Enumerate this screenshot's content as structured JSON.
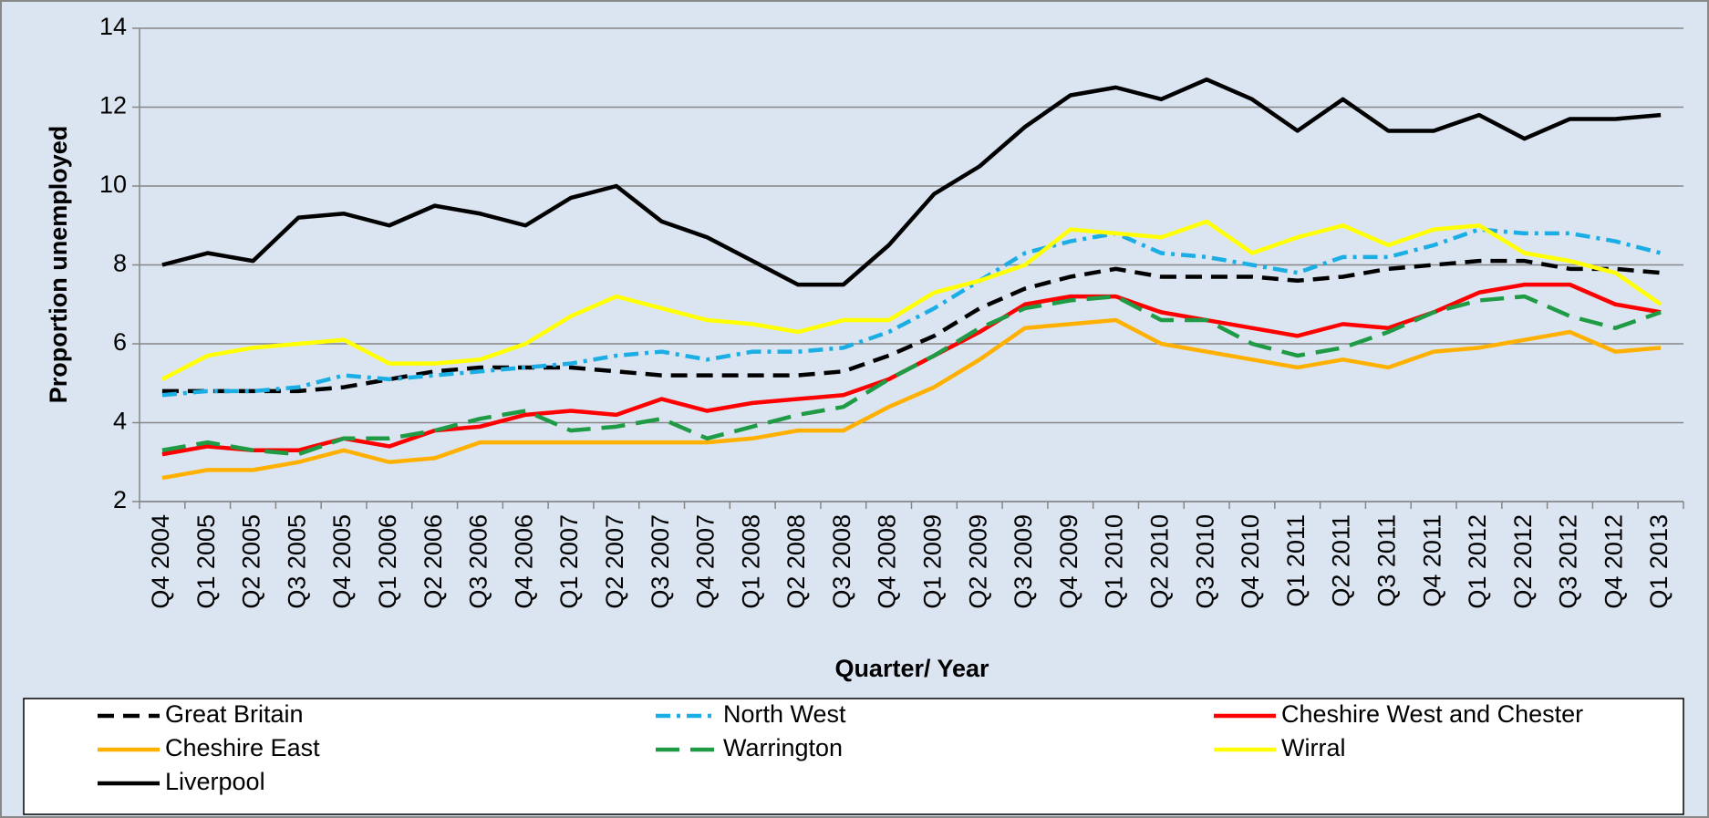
{
  "chart_data": {
    "type": "line",
    "x_label": "Quarter/ Year",
    "y_label": "Proportion unemployed",
    "categories": [
      "Q4 2004",
      "Q1 2005",
      "Q2 2005",
      "Q3 2005",
      "Q4 2005",
      "Q1 2006",
      "Q2 2006",
      "Q3 2006",
      "Q4 2006",
      "Q1 2007",
      "Q2 2007",
      "Q3 2007",
      "Q4 2007",
      "Q1 2008",
      "Q2 2008",
      "Q3 2008",
      "Q4 2008",
      "Q1 2009",
      "Q2 2009",
      "Q3 2009",
      "Q4 2009",
      "Q1 2010",
      "Q2 2010",
      "Q3 2010",
      "Q4 2010",
      "Q1 2011",
      "Q2 2011",
      "Q3 2011",
      "Q4 2011",
      "Q1 2012",
      "Q2 2012",
      "Q3 2012",
      "Q4 2012",
      "Q1 2013"
    ],
    "ylim": [
      2,
      14
    ],
    "yticks": [
      2,
      4,
      6,
      8,
      10,
      12,
      14
    ],
    "grid": true,
    "legend": "bottom",
    "series": [
      {
        "name": "Great Britain",
        "color": "#000000",
        "dash": "dashed",
        "values": [
          4.8,
          4.8,
          4.8,
          4.8,
          4.9,
          5.1,
          5.3,
          5.4,
          5.4,
          5.4,
          5.3,
          5.2,
          5.2,
          5.2,
          5.2,
          5.3,
          5.7,
          6.2,
          6.9,
          7.4,
          7.7,
          7.9,
          7.7,
          7.7,
          7.7,
          7.6,
          7.7,
          7.9,
          8.0,
          8.1,
          8.1,
          7.9,
          7.9,
          7.8
        ]
      },
      {
        "name": "North West",
        "color": "#1aaee5",
        "dash": "dashdot",
        "values": [
          4.7,
          4.8,
          4.8,
          4.9,
          5.2,
          5.1,
          5.2,
          5.3,
          5.4,
          5.5,
          5.7,
          5.8,
          5.6,
          5.8,
          5.8,
          5.9,
          6.3,
          6.9,
          7.6,
          8.3,
          8.6,
          8.8,
          8.3,
          8.2,
          8.0,
          7.8,
          8.2,
          8.2,
          8.5,
          8.9,
          8.8,
          8.8,
          8.6,
          8.3
        ]
      },
      {
        "name": "Cheshire West and Chester",
        "color": "#ff0000",
        "dash": "solid",
        "values": [
          3.2,
          3.4,
          3.3,
          3.3,
          3.6,
          3.4,
          3.8,
          3.9,
          4.2,
          4.3,
          4.2,
          4.6,
          4.3,
          4.5,
          4.6,
          4.7,
          5.1,
          5.7,
          6.3,
          7.0,
          7.2,
          7.2,
          6.8,
          6.6,
          6.4,
          6.2,
          6.5,
          6.4,
          6.8,
          7.3,
          7.5,
          7.5,
          7.0,
          6.8
        ]
      },
      {
        "name": "Cheshire East",
        "color": "#ffb000",
        "dash": "solid",
        "values": [
          2.6,
          2.8,
          2.8,
          3.0,
          3.3,
          3.0,
          3.1,
          3.5,
          3.5,
          3.5,
          3.5,
          3.5,
          3.5,
          3.6,
          3.8,
          3.8,
          4.4,
          4.9,
          5.6,
          6.4,
          6.5,
          6.6,
          6.0,
          5.8,
          5.6,
          5.4,
          5.6,
          5.4,
          5.8,
          5.9,
          6.1,
          6.3,
          5.8,
          5.9
        ]
      },
      {
        "name": "Warrington",
        "color": "#1e9b44",
        "dash": "longdash",
        "values": [
          3.3,
          3.5,
          3.3,
          3.2,
          3.6,
          3.6,
          3.8,
          4.1,
          4.3,
          3.8,
          3.9,
          4.1,
          3.6,
          3.9,
          4.2,
          4.4,
          5.1,
          5.7,
          6.4,
          6.9,
          7.1,
          7.2,
          6.6,
          6.6,
          6.0,
          5.7,
          5.9,
          6.3,
          6.8,
          7.1,
          7.2,
          6.7,
          6.4,
          6.8
        ]
      },
      {
        "name": "Wirral",
        "color": "#ffff00",
        "dash": "solid",
        "values": [
          5.1,
          5.7,
          5.9,
          6.0,
          6.1,
          5.5,
          5.5,
          5.6,
          6.0,
          6.7,
          7.2,
          6.9,
          6.6,
          6.5,
          6.3,
          6.6,
          6.6,
          7.3,
          7.6,
          8.0,
          8.9,
          8.8,
          8.7,
          9.1,
          8.3,
          8.7,
          9.0,
          8.5,
          8.9,
          9.0,
          8.3,
          8.1,
          7.8,
          7.0
        ]
      },
      {
        "name": "Liverpool",
        "color": "#000000",
        "dash": "solid",
        "values": [
          8.0,
          8.3,
          8.1,
          9.2,
          9.3,
          9.0,
          9.5,
          9.3,
          9.0,
          9.7,
          10.0,
          9.1,
          8.7,
          8.1,
          7.5,
          7.5,
          8.5,
          9.8,
          10.5,
          11.5,
          12.3,
          12.5,
          12.2,
          12.7,
          12.2,
          11.4,
          12.2,
          11.4,
          11.4,
          11.8,
          11.2,
          11.7,
          11.7,
          11.8
        ]
      }
    ]
  }
}
